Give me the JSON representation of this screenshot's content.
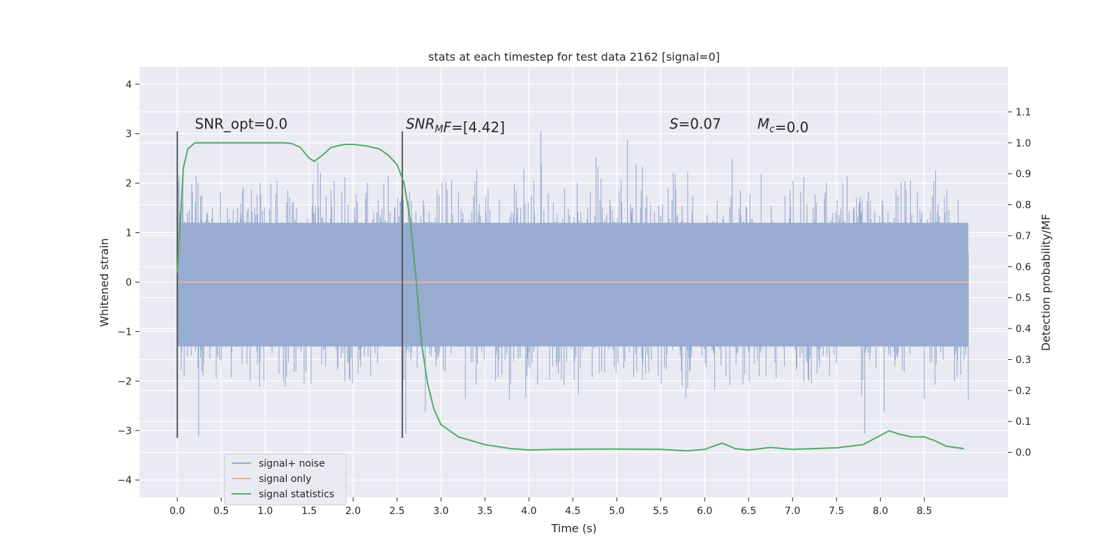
{
  "chart_data": {
    "type": "line",
    "title": "stats at each timestep for test data 2162 [signal=0]",
    "xlabel": "Time (s)",
    "ylabel": "Whitened strain",
    "y2label": "Detection probability/MF",
    "xlim": [
      -0.43,
      9.45
    ],
    "ylim": [
      -4.35,
      4.35
    ],
    "y2lim": [
      -0.145,
      1.245
    ],
    "x_ticks": [
      0.0,
      0.5,
      1.0,
      1.5,
      2.0,
      2.5,
      3.0,
      3.5,
      4.0,
      4.5,
      5.0,
      5.5,
      6.0,
      6.5,
      7.0,
      7.5,
      8.0,
      8.5
    ],
    "x_tick_labels": [
      "0.0",
      "0.5",
      "1.0",
      "1.5",
      "2.0",
      "2.5",
      "3.0",
      "3.5",
      "4.0",
      "4.5",
      "5.0",
      "5.5",
      "6.0",
      "6.5",
      "7.0",
      "7.5",
      "8.0",
      "8.5"
    ],
    "y_ticks": [
      4,
      3,
      2,
      1,
      0,
      -1,
      -2,
      -3,
      -4
    ],
    "y_tick_labels": [
      "4",
      "3",
      "2",
      "1",
      "0",
      "−1",
      "−2",
      "−3",
      "−4"
    ],
    "y2_ticks": [
      1.1,
      1.0,
      0.9,
      0.8,
      0.7,
      0.6,
      0.5,
      0.4,
      0.3,
      0.2,
      0.1,
      0.0
    ],
    "y2_tick_labels": [
      "1.1",
      "1.0",
      "0.9",
      "0.8",
      "0.7",
      "0.6",
      "0.5",
      "0.4",
      "0.3",
      "0.2",
      "0.1",
      "0.0"
    ],
    "grid": true,
    "legend_position": "lower-left",
    "colors": {
      "plot_bg": "#eaeaf2",
      "grid": "#ffffff",
      "noise": "#98abd1",
      "signal": "#e8b4a0",
      "stats": "#55a868",
      "marker": "#555555"
    },
    "series": [
      {
        "name": "signal+ noise",
        "kind": "noise-band",
        "x_start": 0.0,
        "x_end": 9.0,
        "typical_range": [
          -1.3,
          1.2
        ],
        "peak_range": [
          -3.9,
          3.95
        ]
      },
      {
        "name": "signal only",
        "x": [
          0.0,
          9.0
        ],
        "values": [
          0.0,
          0.0
        ]
      },
      {
        "name": "signal statistics",
        "axis": "right",
        "x": [
          0.0,
          0.07,
          0.12,
          0.2,
          0.3,
          0.5,
          0.8,
          1.0,
          1.2,
          1.3,
          1.4,
          1.5,
          1.56,
          1.65,
          1.75,
          1.9,
          2.0,
          2.15,
          2.3,
          2.4,
          2.5,
          2.58,
          2.65,
          2.72,
          2.78,
          2.85,
          2.92,
          3.0,
          3.2,
          3.5,
          3.8,
          4.0,
          4.3,
          5.0,
          5.5,
          5.8,
          6.0,
          6.2,
          6.35,
          6.5,
          6.75,
          7.0,
          7.5,
          7.8,
          8.0,
          8.1,
          8.2,
          8.35,
          8.5,
          8.6,
          8.75,
          8.95
        ],
        "values": [
          0.58,
          0.92,
          0.98,
          1.0,
          1.0,
          1.0,
          1.0,
          1.0,
          1.0,
          0.998,
          0.985,
          0.95,
          0.94,
          0.96,
          0.985,
          0.995,
          0.995,
          0.99,
          0.98,
          0.96,
          0.93,
          0.87,
          0.75,
          0.55,
          0.35,
          0.22,
          0.14,
          0.09,
          0.05,
          0.025,
          0.012,
          0.008,
          0.01,
          0.011,
          0.01,
          0.005,
          0.01,
          0.03,
          0.012,
          0.008,
          0.016,
          0.01,
          0.015,
          0.025,
          0.055,
          0.07,
          0.06,
          0.05,
          0.05,
          0.04,
          0.02,
          0.012
        ]
      }
    ],
    "markers": [
      {
        "x": 0.0,
        "y_range": [
          -3.15,
          3.05
        ]
      },
      {
        "x": 2.56,
        "y_range": [
          -3.15,
          3.05
        ]
      }
    ],
    "annotations": [
      {
        "x": 0.2,
        "y": 3.1,
        "parts": [
          {
            "t": "SNR_opt=0.0",
            "style": "normal"
          }
        ]
      },
      {
        "x": 2.6,
        "y": 3.1,
        "parts": [
          {
            "t": "SNR",
            "style": "italic"
          },
          {
            "t": "M",
            "style": "italic-sub"
          },
          {
            "t": "F",
            "style": "italic"
          },
          {
            "t": "=[4.42]",
            "style": "normal"
          }
        ]
      },
      {
        "x": 5.6,
        "y": 3.1,
        "parts": [
          {
            "t": "S",
            "style": "italic"
          },
          {
            "t": "=0.07",
            "style": "normal"
          }
        ]
      },
      {
        "x": 6.6,
        "y": 3.1,
        "parts": [
          {
            "t": "M",
            "style": "italic"
          },
          {
            "t": "c",
            "style": "italic-sub"
          },
          {
            "t": "=0.0",
            "style": "normal"
          }
        ]
      }
    ]
  }
}
